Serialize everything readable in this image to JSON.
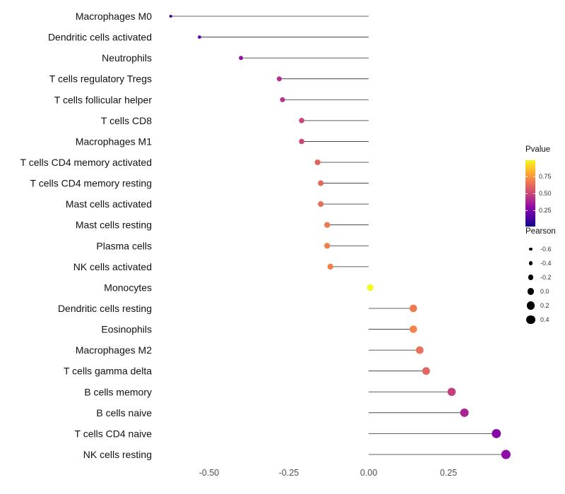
{
  "chart_data": {
    "type": "lollipop",
    "title": "",
    "xlabel": "",
    "ylabel": "",
    "xlim": [
      -0.7,
      0.47
    ],
    "x_ticks": [
      -0.5,
      -0.25,
      0.0,
      0.25
    ],
    "x_tick_labels": [
      "-0.50",
      "-0.25",
      "0.00",
      "0.25"
    ],
    "grid": false,
    "background": "#ffffff",
    "stem_color": "#2b2b2b",
    "points": [
      {
        "label": "Macrophages M0",
        "pearson": -0.62,
        "color": "#3a049a"
      },
      {
        "label": "Dendritic cells activated",
        "pearson": -0.53,
        "color": "#6a00a8"
      },
      {
        "label": "Neutrophils",
        "pearson": -0.4,
        "color": "#9511a1"
      },
      {
        "label": "T cells regulatory  Tregs",
        "pearson": -0.28,
        "color": "#b42e8d"
      },
      {
        "label": "T cells follicular helper",
        "pearson": -0.27,
        "color": "#b9338a"
      },
      {
        "label": "T cells CD8",
        "pearson": -0.21,
        "color": "#ca457c"
      },
      {
        "label": "Macrophages M1",
        "pearson": -0.21,
        "color": "#cc4778"
      },
      {
        "label": "T cells CD4 memory activated",
        "pearson": -0.16,
        "color": "#e0635f"
      },
      {
        "label": "T cells CD4 memory resting",
        "pearson": -0.15,
        "color": "#e26761"
      },
      {
        "label": "Mast cells activated",
        "pearson": -0.15,
        "color": "#e66c5a"
      },
      {
        "label": "Mast cells resting",
        "pearson": -0.13,
        "color": "#ee7b51"
      },
      {
        "label": "Plasma cells",
        "pearson": -0.13,
        "color": "#ef7e4f"
      },
      {
        "label": "NK cells activated",
        "pearson": -0.12,
        "color": "#f0814d"
      },
      {
        "label": "Monocytes",
        "pearson": 0.005,
        "color": "#f0f921"
      },
      {
        "label": "Dendritic cells resting",
        "pearson": 0.14,
        "color": "#ee7b51"
      },
      {
        "label": "Eosinophils",
        "pearson": 0.14,
        "color": "#f1844b"
      },
      {
        "label": "Macrophages M2",
        "pearson": 0.16,
        "color": "#e87257"
      },
      {
        "label": "T cells gamma delta",
        "pearson": 0.18,
        "color": "#e36663"
      },
      {
        "label": "B cells memory",
        "pearson": 0.26,
        "color": "#c5407f"
      },
      {
        "label": "B cells naive",
        "pearson": 0.3,
        "color": "#aa2394"
      },
      {
        "label": "T cells CD4 naive",
        "pearson": 0.4,
        "color": "#8405a7"
      },
      {
        "label": "NK cells resting",
        "pearson": 0.43,
        "color": "#8f0da4"
      }
    ]
  },
  "legends": {
    "pvalue": {
      "title": "Pvalue",
      "tick_labels": [
        "0.75",
        "0.50",
        "0.25"
      ],
      "tick_positions": [
        0.24,
        0.5,
        0.76
      ],
      "gradient_top_to_bottom": [
        "#f0f921",
        "#fcce25",
        "#fca636",
        "#f2844b",
        "#e16462",
        "#cc4778",
        "#b12a90",
        "#8f0da4",
        "#6a00a8",
        "#41049d",
        "#0d0887"
      ]
    },
    "pearson": {
      "title": "Pearson",
      "dot_color": "#000000",
      "items": [
        {
          "label": "-0.6",
          "value": -0.6
        },
        {
          "label": "-0.4",
          "value": -0.4
        },
        {
          "label": "-0.2",
          "value": -0.2
        },
        {
          "label": "0.0",
          "value": 0.0
        },
        {
          "label": "0.2",
          "value": 0.2
        },
        {
          "label": "0.4",
          "value": 0.4
        }
      ]
    }
  }
}
